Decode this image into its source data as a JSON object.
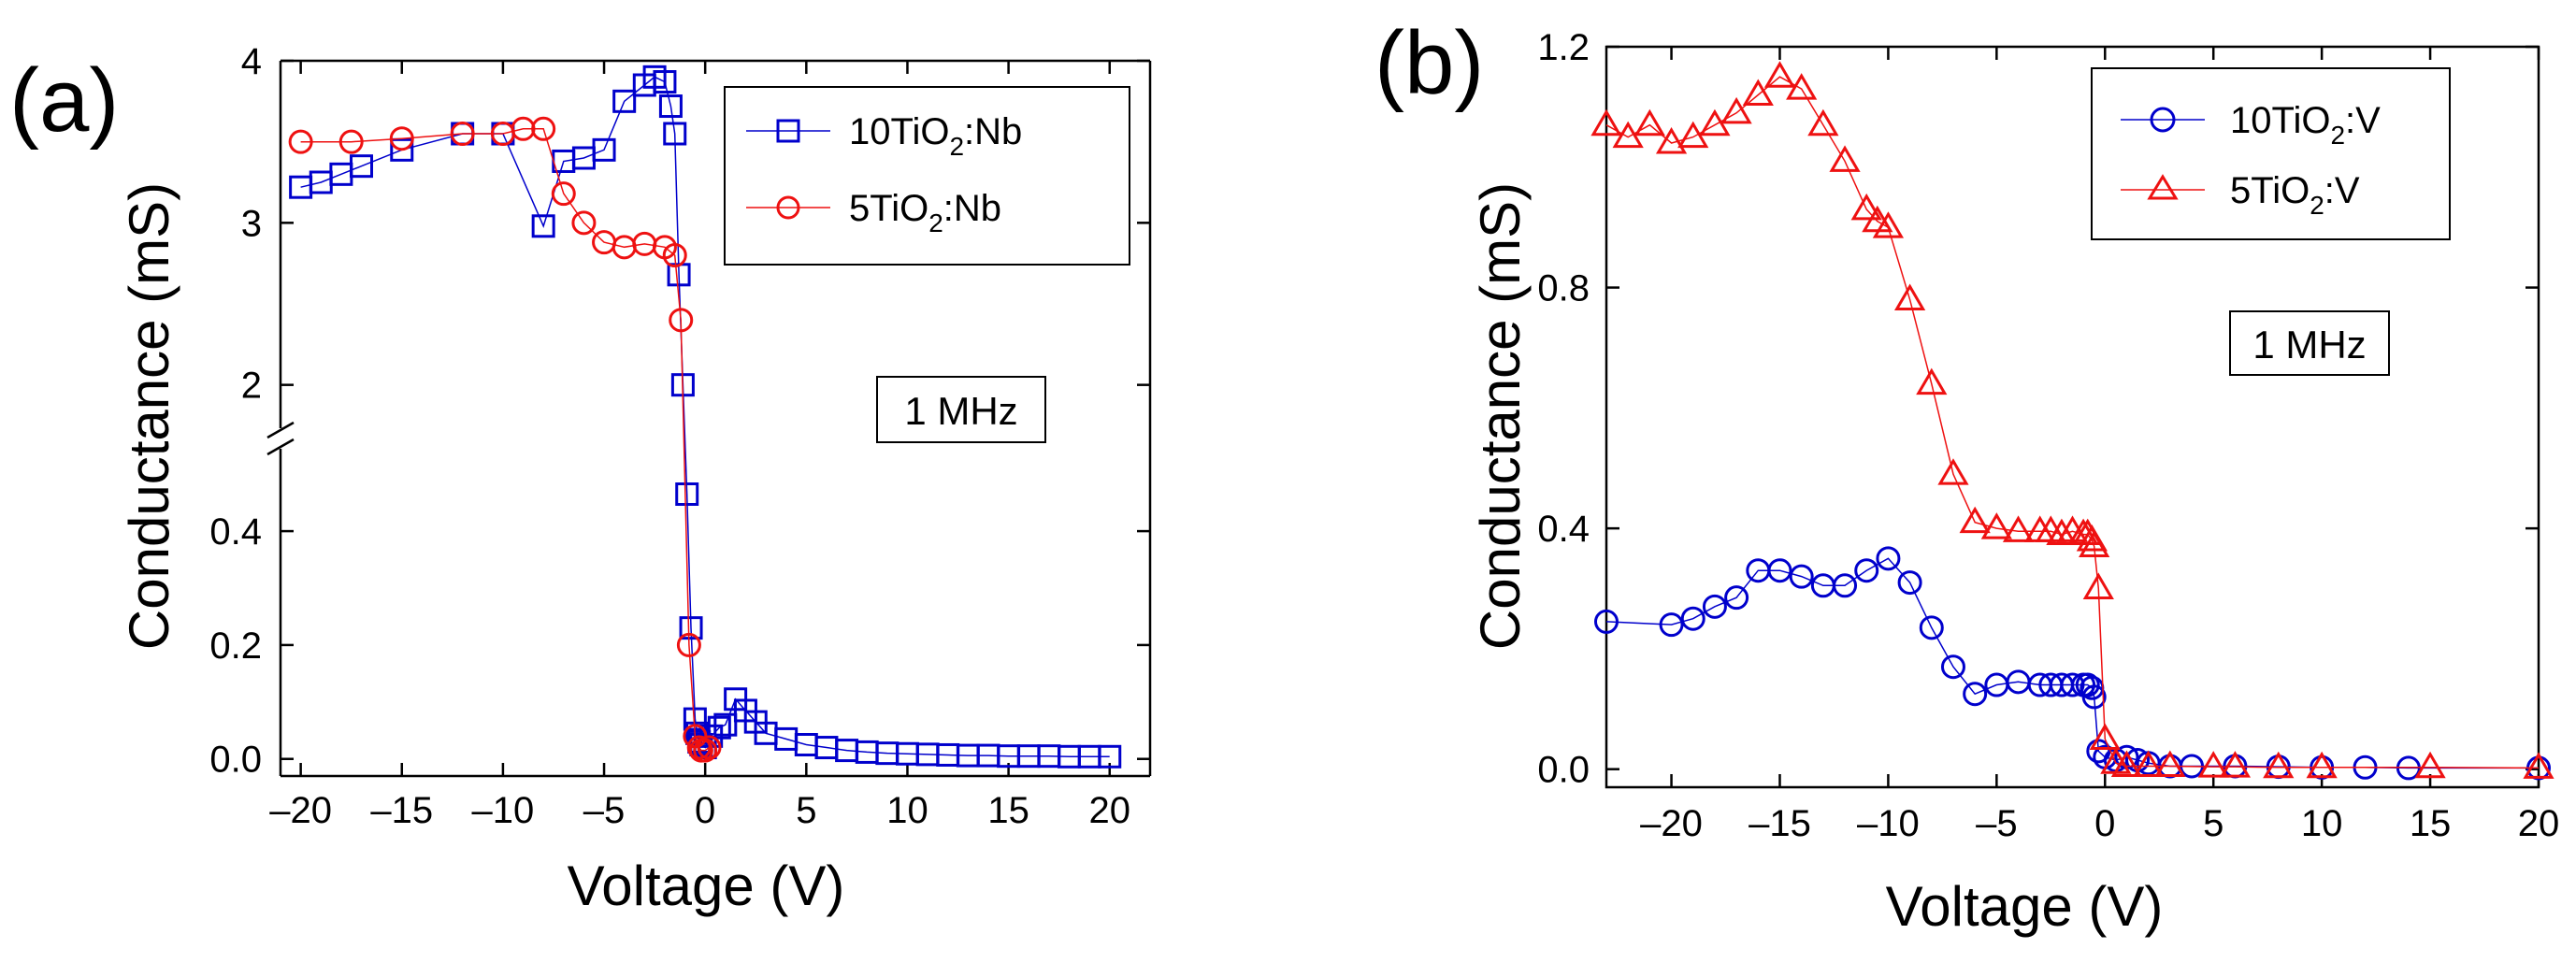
{
  "chart_data": [
    {
      "panel": "(a)",
      "type": "line",
      "xlabel": "Voltage (V)",
      "ylabel": "Conductance (mS)",
      "xlim": [
        -21,
        22
      ],
      "x_ticks": [
        -20,
        -15,
        -10,
        -5,
        0,
        5,
        10,
        15,
        20
      ],
      "x_tick_labels": [
        "-20",
        "-15",
        "-10",
        "-5",
        "0",
        "5",
        "10",
        "15",
        "20"
      ],
      "y_axis_break": true,
      "ylim_lower": [
        -0.03,
        0.52
      ],
      "ylim_upper": [
        1.75,
        4.0
      ],
      "y_ticks_lower": [
        0.0,
        0.2,
        0.4
      ],
      "y_tick_labels_lower": [
        "0.0",
        "0.2",
        "0.4"
      ],
      "y_ticks_upper": [
        2,
        3,
        4
      ],
      "y_tick_labels_upper": [
        "2",
        "3",
        "4"
      ],
      "annotation": "1 MHz",
      "legend_position": "top-right",
      "series": [
        {
          "name": "10TiO2:Nb",
          "legend_parts": [
            "10TiO",
            "2",
            ":Nb"
          ],
          "color": "#0000cc",
          "marker": "square",
          "x": [
            -20,
            -19,
            -18,
            -17,
            -15,
            -12,
            -10,
            -8,
            -7,
            -6,
            -5,
            -4,
            -3,
            -2.5,
            -2,
            -1.7,
            -1.5,
            -1.3,
            -1.1,
            -0.9,
            -0.7,
            -0.5,
            -0.4,
            -0.3,
            -0.2,
            0,
            0.3,
            0.7,
            1,
            1.5,
            2,
            2.5,
            3,
            4,
            5,
            6,
            7,
            8,
            9,
            10,
            11,
            12,
            13,
            14,
            15,
            16,
            17,
            18,
            19,
            20
          ],
          "y": [
            3.22,
            3.25,
            3.3,
            3.35,
            3.45,
            3.55,
            3.55,
            2.98,
            3.38,
            3.4,
            3.45,
            3.75,
            3.85,
            3.9,
            3.87,
            3.72,
            3.55,
            2.68,
            2.0,
            0.465,
            0.23,
            0.07,
            0.045,
            0.03,
            0.025,
            0.02,
            0.04,
            0.055,
            0.06,
            0.105,
            0.085,
            0.065,
            0.045,
            0.035,
            0.025,
            0.02,
            0.015,
            0.012,
            0.01,
            0.009,
            0.008,
            0.007,
            0.006,
            0.006,
            0.005,
            0.005,
            0.005,
            0.004,
            0.004,
            0.004
          ]
        },
        {
          "name": "5TiO2:Nb",
          "legend_parts": [
            "5TiO",
            "2",
            ":Nb"
          ],
          "color": "#ee1111",
          "marker": "circle",
          "x": [
            -20,
            -17.5,
            -15,
            -12,
            -10,
            -9,
            -8,
            -7,
            -6,
            -5,
            -4,
            -3,
            -2,
            -1.5,
            -1.2,
            -0.8,
            -0.5,
            -0.3,
            -0.2,
            0,
            0.2
          ],
          "y": [
            3.5,
            3.5,
            3.52,
            3.55,
            3.55,
            3.58,
            3.58,
            3.18,
            3.0,
            2.88,
            2.85,
            2.87,
            2.85,
            2.8,
            2.4,
            0.2,
            0.04,
            0.02,
            0.015,
            0.015,
            0.02
          ]
        }
      ]
    },
    {
      "panel": "(b)",
      "type": "line",
      "xlabel": "Voltage (V)",
      "ylabel": "Conductance (mS)",
      "xlim": [
        -23,
        20
      ],
      "ylim": [
        -0.03,
        1.2
      ],
      "x_ticks": [
        -20,
        -15,
        -10,
        -5,
        0,
        5,
        10,
        15,
        20
      ],
      "x_tick_labels": [
        "-20",
        "-15",
        "-10",
        "-5",
        "0",
        "5",
        "10",
        "15",
        "20"
      ],
      "y_ticks": [
        0.0,
        0.4,
        0.8,
        1.2
      ],
      "y_tick_labels": [
        "0.0",
        "0.4",
        "0.8",
        "1.2"
      ],
      "annotation": "1 MHz",
      "legend_position": "top-right",
      "series": [
        {
          "name": "10TiO2:V",
          "legend_parts": [
            "10TiO",
            "2",
            ":V"
          ],
          "color": "#0000cc",
          "marker": "circle",
          "x": [
            -23,
            -20,
            -19,
            -18,
            -17,
            -16,
            -15,
            -14,
            -13,
            -12,
            -11,
            -10,
            -9,
            -8,
            -7,
            -6,
            -5,
            -4,
            -3,
            -2.5,
            -2,
            -1.5,
            -1,
            -0.8,
            -0.6,
            -0.5,
            -0.3,
            0,
            0.5,
            1,
            1.5,
            2,
            3,
            4,
            6,
            8,
            10,
            12,
            14,
            20
          ],
          "y": [
            0.245,
            0.24,
            0.25,
            0.27,
            0.285,
            0.33,
            0.33,
            0.32,
            0.305,
            0.305,
            0.33,
            0.35,
            0.31,
            0.235,
            0.17,
            0.125,
            0.14,
            0.145,
            0.14,
            0.14,
            0.14,
            0.14,
            0.14,
            0.14,
            0.135,
            0.12,
            0.03,
            0.02,
            0.015,
            0.02,
            0.015,
            0.01,
            0.005,
            0.005,
            0.005,
            0.004,
            0.003,
            0.003,
            0.002,
            0.002
          ]
        },
        {
          "name": "5TiO2:V",
          "legend_parts": [
            "5TiO",
            "2",
            ":V"
          ],
          "color": "#ee1111",
          "marker": "triangle",
          "x": [
            -23,
            -22,
            -21,
            -20,
            -19,
            -18,
            -17,
            -16,
            -15,
            -14,
            -13,
            -12,
            -11,
            -10.5,
            -10,
            -9,
            -8,
            -7,
            -6,
            -5,
            -4,
            -3,
            -2.5,
            -2,
            -1.5,
            -1,
            -0.8,
            -0.6,
            -0.5,
            -0.3,
            0,
            0.5,
            1,
            2,
            3,
            5,
            6,
            8,
            10,
            15,
            20
          ],
          "y": [
            1.07,
            1.05,
            1.07,
            1.04,
            1.05,
            1.07,
            1.09,
            1.12,
            1.15,
            1.13,
            1.07,
            1.01,
            0.93,
            0.91,
            0.9,
            0.78,
            0.64,
            0.49,
            0.41,
            0.4,
            0.395,
            0.395,
            0.395,
            0.39,
            0.395,
            0.39,
            0.39,
            0.38,
            0.37,
            0.3,
            0.05,
            0.01,
            0.005,
            0.005,
            0.005,
            0.004,
            0.004,
            0.003,
            0.003,
            0.003,
            0.002
          ]
        }
      ]
    }
  ]
}
